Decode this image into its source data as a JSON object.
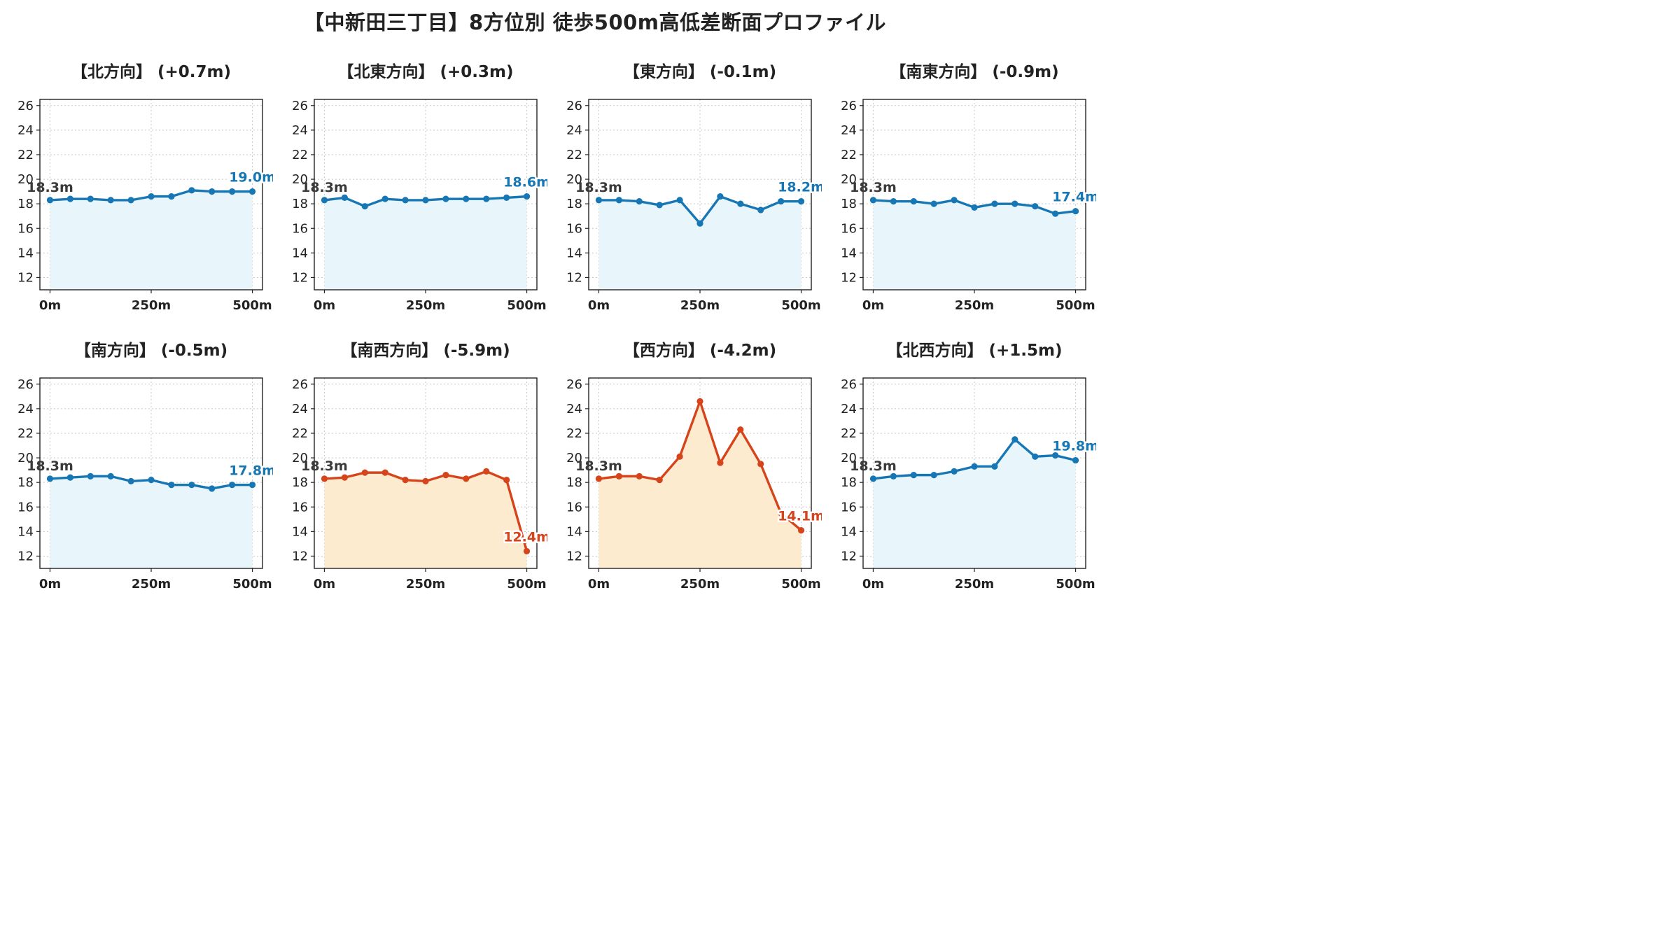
{
  "title": "【中新田三丁目】8方位別 徒歩500m高低差断面プロファイル",
  "colors": {
    "rise": "#1777b4",
    "rise_fill": "#e8f5fb",
    "drop": "#d6441b",
    "drop_fill": "#fdebd0",
    "start_label": "#3a3a3a",
    "grid": "#c8c8c8"
  },
  "chart_data": [
    {
      "type": "area",
      "title": "【北方向】 (+0.7m)",
      "x": [
        0,
        50,
        100,
        150,
        200,
        250,
        300,
        350,
        400,
        450,
        500
      ],
      "values": [
        18.3,
        18.4,
        18.4,
        18.3,
        18.3,
        18.6,
        18.6,
        19.1,
        19.0,
        19.0,
        19.0
      ],
      "start_label": "18.3m",
      "end_label": "19.0m",
      "trend": "rise",
      "xticks": [
        "0m",
        "250m",
        "500m"
      ],
      "yticks": [
        "12",
        "14",
        "16",
        "18",
        "20",
        "22",
        "24",
        "26"
      ],
      "ylim": [
        11,
        26.5
      ],
      "xlim": [
        -25,
        525
      ],
      "grid": true
    },
    {
      "type": "area",
      "title": "【北東方向】 (+0.3m)",
      "x": [
        0,
        50,
        100,
        150,
        200,
        250,
        300,
        350,
        400,
        450,
        500
      ],
      "values": [
        18.3,
        18.5,
        17.8,
        18.4,
        18.3,
        18.3,
        18.4,
        18.4,
        18.4,
        18.5,
        18.6
      ],
      "start_label": "18.3m",
      "end_label": "18.6m",
      "trend": "rise",
      "xticks": [
        "0m",
        "250m",
        "500m"
      ],
      "yticks": [
        "12",
        "14",
        "16",
        "18",
        "20",
        "22",
        "24",
        "26"
      ],
      "ylim": [
        11,
        26.5
      ],
      "xlim": [
        -25,
        525
      ],
      "grid": true
    },
    {
      "type": "area",
      "title": "【東方向】 (-0.1m)",
      "x": [
        0,
        50,
        100,
        150,
        200,
        250,
        300,
        350,
        400,
        450,
        500
      ],
      "values": [
        18.3,
        18.3,
        18.2,
        17.9,
        18.3,
        16.4,
        18.6,
        18.0,
        17.5,
        18.2,
        18.2
      ],
      "start_label": "18.3m",
      "end_label": "18.2m",
      "trend": "rise",
      "xticks": [
        "0m",
        "250m",
        "500m"
      ],
      "yticks": [
        "12",
        "14",
        "16",
        "18",
        "20",
        "22",
        "24",
        "26"
      ],
      "ylim": [
        11,
        26.5
      ],
      "xlim": [
        -25,
        525
      ],
      "grid": true
    },
    {
      "type": "area",
      "title": "【南東方向】 (-0.9m)",
      "x": [
        0,
        50,
        100,
        150,
        200,
        250,
        300,
        350,
        400,
        450,
        500
      ],
      "values": [
        18.3,
        18.2,
        18.2,
        18.0,
        18.3,
        17.7,
        18.0,
        18.0,
        17.8,
        17.2,
        17.4
      ],
      "start_label": "18.3m",
      "end_label": "17.4m",
      "trend": "rise",
      "xticks": [
        "0m",
        "250m",
        "500m"
      ],
      "yticks": [
        "12",
        "14",
        "16",
        "18",
        "20",
        "22",
        "24",
        "26"
      ],
      "ylim": [
        11,
        26.5
      ],
      "xlim": [
        -25,
        525
      ],
      "grid": true
    },
    {
      "type": "area",
      "title": "【南方向】 (-0.5m)",
      "x": [
        0,
        50,
        100,
        150,
        200,
        250,
        300,
        350,
        400,
        450,
        500
      ],
      "values": [
        18.3,
        18.4,
        18.5,
        18.5,
        18.1,
        18.2,
        17.8,
        17.8,
        17.5,
        17.8,
        17.8
      ],
      "start_label": "18.3m",
      "end_label": "17.8m",
      "trend": "rise",
      "xticks": [
        "0m",
        "250m",
        "500m"
      ],
      "yticks": [
        "12",
        "14",
        "16",
        "18",
        "20",
        "22",
        "24",
        "26"
      ],
      "ylim": [
        11,
        26.5
      ],
      "xlim": [
        -25,
        525
      ],
      "grid": true
    },
    {
      "type": "area",
      "title": "【南西方向】 (-5.9m)",
      "x": [
        0,
        50,
        100,
        150,
        200,
        250,
        300,
        350,
        400,
        450,
        500
      ],
      "values": [
        18.3,
        18.4,
        18.8,
        18.8,
        18.2,
        18.1,
        18.6,
        18.3,
        18.9,
        18.2,
        12.4
      ],
      "start_label": "18.3m",
      "end_label": "12.4m",
      "trend": "drop",
      "xticks": [
        "0m",
        "250m",
        "500m"
      ],
      "yticks": [
        "12",
        "14",
        "16",
        "18",
        "20",
        "22",
        "24",
        "26"
      ],
      "ylim": [
        11,
        26.5
      ],
      "xlim": [
        -25,
        525
      ],
      "grid": true
    },
    {
      "type": "area",
      "title": "【西方向】 (-4.2m)",
      "x": [
        0,
        50,
        100,
        150,
        200,
        250,
        300,
        350,
        400,
        450,
        500
      ],
      "values": [
        18.3,
        18.5,
        18.5,
        18.2,
        20.1,
        24.6,
        19.6,
        22.3,
        19.5,
        15.5,
        14.1
      ],
      "start_label": "18.3m",
      "end_label": "14.1m",
      "trend": "drop",
      "xticks": [
        "0m",
        "250m",
        "500m"
      ],
      "yticks": [
        "12",
        "14",
        "16",
        "18",
        "20",
        "22",
        "24",
        "26"
      ],
      "ylim": [
        11,
        26.5
      ],
      "xlim": [
        -25,
        525
      ],
      "grid": true
    },
    {
      "type": "area",
      "title": "【北西方向】 (+1.5m)",
      "x": [
        0,
        50,
        100,
        150,
        200,
        250,
        300,
        350,
        400,
        450,
        500
      ],
      "values": [
        18.3,
        18.5,
        18.6,
        18.6,
        18.9,
        19.3,
        19.3,
        21.5,
        20.1,
        20.2,
        19.8
      ],
      "start_label": "18.3m",
      "end_label": "19.8m",
      "trend": "rise",
      "xticks": [
        "0m",
        "250m",
        "500m"
      ],
      "yticks": [
        "12",
        "14",
        "16",
        "18",
        "20",
        "22",
        "24",
        "26"
      ],
      "ylim": [
        11,
        26.5
      ],
      "xlim": [
        -25,
        525
      ],
      "grid": true
    }
  ]
}
